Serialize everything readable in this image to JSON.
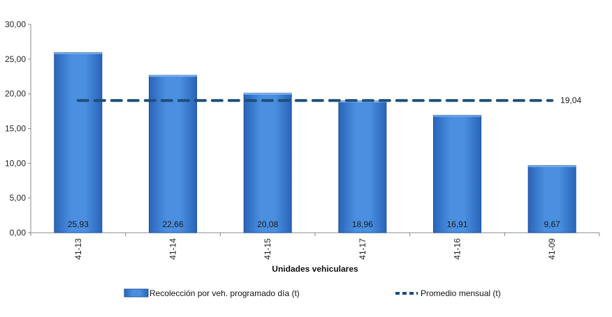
{
  "chart_data": {
    "type": "bar",
    "categories": [
      "41-13",
      "41-14",
      "41-15",
      "41-17",
      "41-16",
      "41-09"
    ],
    "series": [
      {
        "name": "Recolección por veh. programado día (t)",
        "values": [
          25.93,
          22.66,
          20.08,
          18.96,
          16.91,
          9.67
        ],
        "value_labels": [
          "25,93",
          "22,66",
          "20,08",
          "18,96",
          "16,91",
          "9,67"
        ],
        "color": "#3d7fd0"
      },
      {
        "name": "Promedio mensual (t)",
        "type": "line",
        "style": "dashed",
        "values": [
          19.04,
          19.04,
          19.04,
          19.04,
          19.04,
          19.04
        ],
        "value_label": "19,04",
        "color": "#1f4e79"
      }
    ],
    "xlabel": "Unidades vehiculares",
    "ylabel": "",
    "ylim": [
      0,
      30
    ],
    "yticks": [
      "0,00",
      "5,00",
      "10,00",
      "15,00",
      "20,00",
      "25,00",
      "30,00"
    ],
    "grid": false,
    "legend_position": "bottom"
  }
}
